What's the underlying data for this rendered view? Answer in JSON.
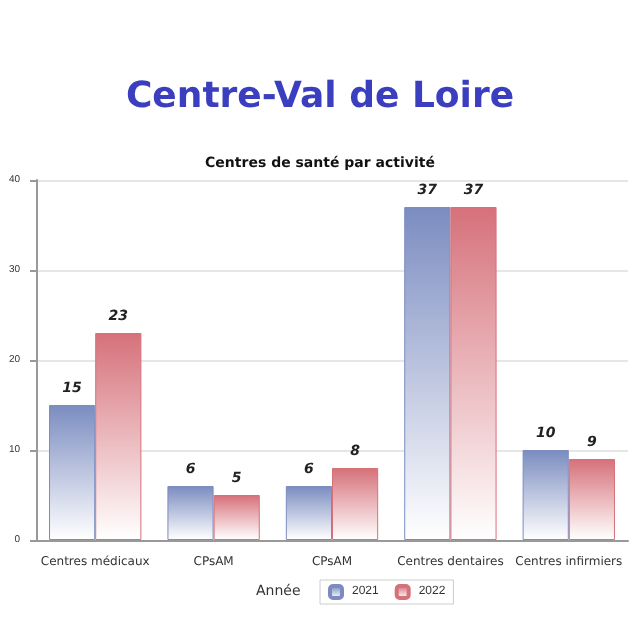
{
  "chart_data": {
    "type": "bar",
    "title": "Centre-Val de Loire",
    "subtitle": "Centres de santé par activité",
    "categories": [
      "Centres médicaux",
      "CPsAM",
      "CPsAM",
      "Centres dentaires",
      "Centres infirmiers"
    ],
    "series": [
      {
        "name": "2021",
        "color": "#7b8cc0",
        "values": [
          15,
          6,
          6,
          37,
          10
        ]
      },
      {
        "name": "2022",
        "color": "#d6717a",
        "values": [
          23,
          5,
          8,
          37,
          9
        ]
      }
    ],
    "ylim": [
      0,
      40
    ],
    "yticks": [
      0,
      10,
      20,
      30,
      40
    ],
    "grid": "y",
    "legend": "bottom",
    "legend_title": "Année",
    "data_labels": true
  }
}
